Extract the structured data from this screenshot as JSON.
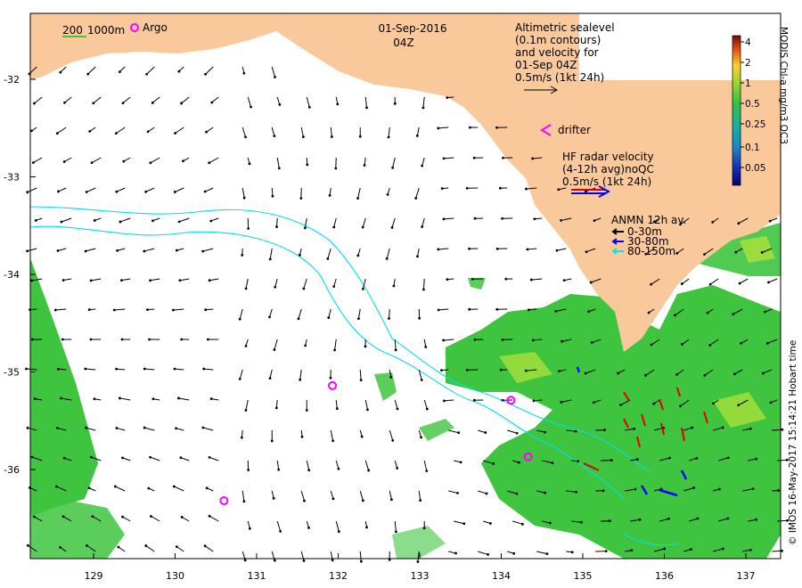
{
  "header": {
    "date": "01-Sep-2016",
    "time": "04Z"
  },
  "legend": {
    "scale_200": "200",
    "scale_1000": "1000m",
    "argo_label": "Argo",
    "altimetric": [
      "Altimetric sealevel",
      "(0.1m contours)",
      "and velocity for",
      "01-Sep 04Z",
      "0.5m/s (1kt 24h)"
    ],
    "drifter_label": "drifter",
    "hf_radar": [
      "HF radar velocity",
      "(4-12h avg)noQC",
      "0.5m/s (1kt 24h)"
    ],
    "anmn_title": "ANMN 12h av.",
    "anmn_items": [
      {
        "label": "0-30m",
        "color": "#000000"
      },
      {
        "label": "30-80m",
        "color": "#0000ff"
      },
      {
        "label": "80-150m",
        "color": "#00e5ee"
      }
    ]
  },
  "colorbar": {
    "title": "MODIS Chl-a mg/m3 OC3",
    "ticks": [
      "4",
      "2",
      "1",
      "0.5",
      "0.25",
      "0.1",
      "0.05"
    ]
  },
  "axes": {
    "lat_ticks": [
      "-32",
      "-33",
      "-34",
      "-35",
      "-36"
    ],
    "lon_ticks": [
      "129",
      "130",
      "131",
      "132",
      "133",
      "134",
      "135",
      "136",
      "137"
    ],
    "lat_values": [
      -32,
      -33,
      -34,
      -35,
      -36
    ],
    "lon_values": [
      129,
      130,
      131,
      132,
      133,
      134,
      135,
      136,
      137
    ]
  },
  "credit": "© IMOS 16-May-2017 15:14:21 Hobart time",
  "argo_floats": [
    {
      "lon": 130.6,
      "lat": -36.32
    },
    {
      "lon": 131.93,
      "lat": -35.14
    },
    {
      "lon": 134.12,
      "lat": -35.29
    },
    {
      "lon": 134.33,
      "lat": -35.87
    }
  ],
  "colors": {
    "land": "#f9c99b",
    "ocean": "#ffffff",
    "chl_green": "#3ec43e",
    "contour": "#00e0e8",
    "argo": "#ff00ff",
    "radar": "#e00000"
  }
}
